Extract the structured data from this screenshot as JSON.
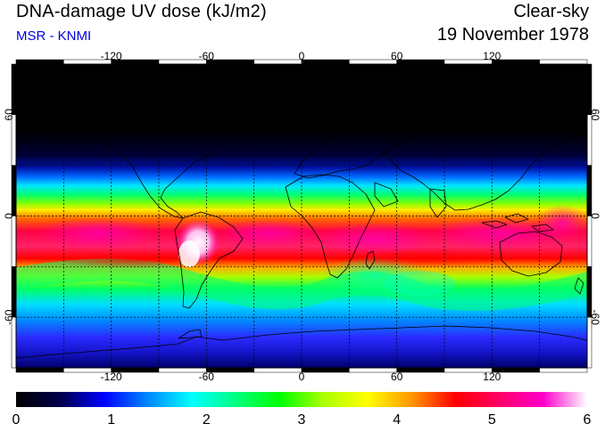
{
  "header": {
    "title": "DNA-damage UV dose (kJ/m2)",
    "source": "MSR - KNMI",
    "condition": "Clear-sky",
    "date": "19 November 1978"
  },
  "map": {
    "projection": "equirectangular",
    "lon_range": [
      -180,
      180
    ],
    "lat_range": [
      -90,
      90
    ],
    "lon_ticks": [
      -120,
      -60,
      0,
      60,
      120
    ],
    "lon_tick_labels": [
      "-120",
      "-60",
      "0",
      "60",
      "120"
    ],
    "lat_ticks": [
      60,
      0,
      -60
    ],
    "lat_tick_labels": [
      "60",
      "0",
      "-60"
    ],
    "gridlines": "dashed",
    "grid_lon_step": 30,
    "grid_lat_step": 30,
    "coastlines": true
  },
  "colorbar": {
    "min": 0,
    "max": 6,
    "tick_labels": [
      "0",
      "1",
      "2",
      "3",
      "4",
      "5",
      "6"
    ],
    "colors": [
      "#000000",
      "#00004a",
      "#0000ff",
      "#0088ff",
      "#00ffff",
      "#00ff80",
      "#00ff00",
      "#aaff00",
      "#ffff00",
      "#ff9900",
      "#ff0000",
      "#ff0066",
      "#ff00cc",
      "#ffffff"
    ]
  }
}
